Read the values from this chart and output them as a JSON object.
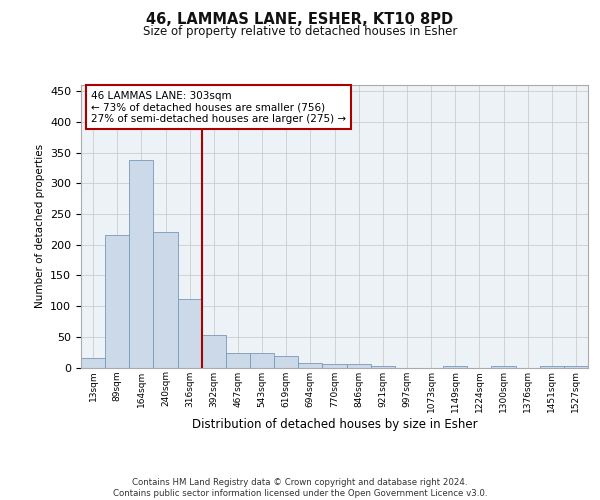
{
  "title": "46, LAMMAS LANE, ESHER, KT10 8PD",
  "subtitle": "Size of property relative to detached houses in Esher",
  "xlabel": "Distribution of detached houses by size in Esher",
  "ylabel": "Number of detached properties",
  "bar_color": "#ccd9e8",
  "bar_edge_color": "#7799bb",
  "categories": [
    "13sqm",
    "89sqm",
    "164sqm",
    "240sqm",
    "316sqm",
    "392sqm",
    "467sqm",
    "543sqm",
    "619sqm",
    "694sqm",
    "770sqm",
    "846sqm",
    "921sqm",
    "997sqm",
    "1073sqm",
    "1149sqm",
    "1224sqm",
    "1300sqm",
    "1376sqm",
    "1451sqm",
    "1527sqm"
  ],
  "values": [
    15,
    215,
    338,
    220,
    112,
    53,
    24,
    24,
    18,
    8,
    5,
    5,
    2,
    0,
    0,
    3,
    0,
    3,
    0,
    2,
    2
  ],
  "vline_x": 4,
  "vline_color": "#aa0000",
  "annotation_text": "46 LAMMAS LANE: 303sqm\n← 73% of detached houses are smaller (756)\n27% of semi-detached houses are larger (275) →",
  "annotation_box_color": "#ffffff",
  "annotation_box_edge_color": "#aa0000",
  "ylim": [
    0,
    460
  ],
  "yticks": [
    0,
    50,
    100,
    150,
    200,
    250,
    300,
    350,
    400,
    450
  ],
  "footer": "Contains HM Land Registry data © Crown copyright and database right 2024.\nContains public sector information licensed under the Open Government Licence v3.0.",
  "grid_color": "#cccccc",
  "bg_color": "#edf2f7"
}
